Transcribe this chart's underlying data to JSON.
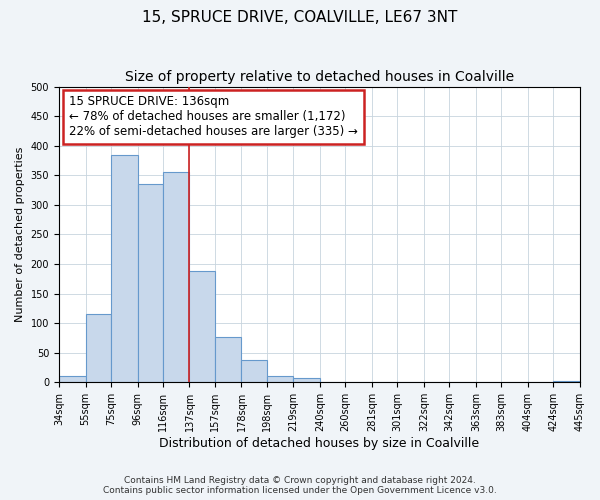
{
  "title": "15, SPRUCE DRIVE, COALVILLE, LE67 3NT",
  "subtitle": "Size of property relative to detached houses in Coalville",
  "xlabel": "Distribution of detached houses by size in Coalville",
  "ylabel": "Number of detached properties",
  "bin_edges": [
    34,
    55,
    75,
    96,
    116,
    137,
    157,
    178,
    198,
    219,
    240,
    260,
    281,
    301,
    322,
    342,
    363,
    383,
    404,
    424,
    445
  ],
  "bin_heights": [
    11,
    115,
    385,
    335,
    355,
    188,
    76,
    38,
    11,
    7,
    1,
    1,
    0,
    0,
    0,
    0,
    0,
    0,
    0,
    3
  ],
  "bar_facecolor": "#c8d8eb",
  "bar_edgecolor": "#6699cc",
  "vline_x": 137,
  "vline_color": "#cc2222",
  "annotation_text_line1": "15 SPRUCE DRIVE: 136sqm",
  "annotation_text_line2": "← 78% of detached houses are smaller (1,172)",
  "annotation_text_line3": "22% of semi-detached houses are larger (335) →",
  "annotation_box_edgecolor": "#cc2222",
  "annotation_box_facecolor": "#ffffff",
  "ylim": [
    0,
    500
  ],
  "footer_line1": "Contains HM Land Registry data © Crown copyright and database right 2024.",
  "footer_line2": "Contains public sector information licensed under the Open Government Licence v3.0.",
  "bg_color": "#f0f4f8",
  "plot_bg_color": "#ffffff",
  "title_fontsize": 11,
  "subtitle_fontsize": 10,
  "xlabel_fontsize": 9,
  "ylabel_fontsize": 8,
  "tick_fontsize": 7,
  "tick_labels": [
    "34sqm",
    "55sqm",
    "75sqm",
    "96sqm",
    "116sqm",
    "137sqm",
    "157sqm",
    "178sqm",
    "198sqm",
    "219sqm",
    "240sqm",
    "260sqm",
    "281sqm",
    "301sqm",
    "322sqm",
    "342sqm",
    "363sqm",
    "383sqm",
    "404sqm",
    "424sqm",
    "445sqm"
  ],
  "yticks": [
    0,
    50,
    100,
    150,
    200,
    250,
    300,
    350,
    400,
    450,
    500
  ],
  "grid_color": "#c8d4de",
  "annotation_fontsize": 8.5,
  "footer_fontsize": 6.5
}
